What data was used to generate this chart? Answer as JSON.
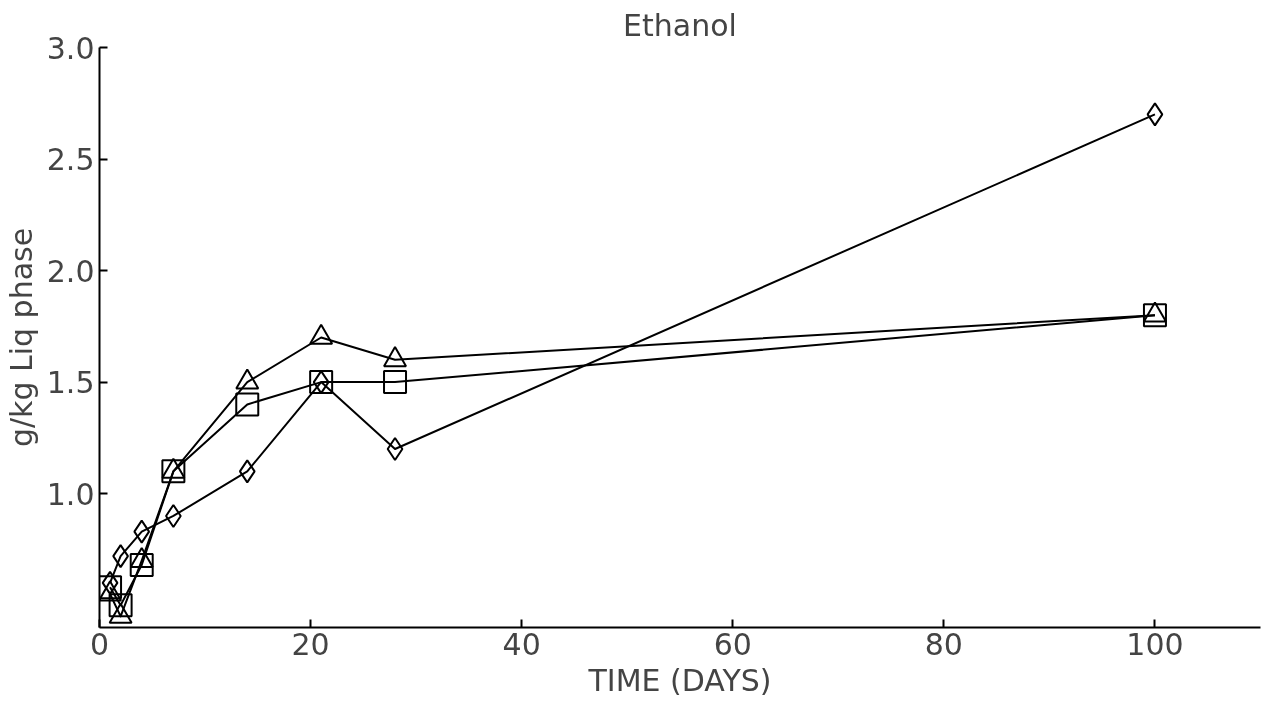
{
  "chart_data": {
    "type": "line",
    "title": "Ethanol",
    "xlabel": "TIME (DAYS)",
    "ylabel": "g/kg Liq phase",
    "x": [
      1,
      2,
      4,
      7,
      14,
      21,
      28,
      100
    ],
    "series": [
      {
        "color": "#000000",
        "marker": "diamond",
        "values": [
          0.6,
          0.72,
          0.83,
          0.9,
          1.1,
          1.5,
          1.2,
          2.7
        ]
      },
      {
        "color": "#000000",
        "marker": "square",
        "values": [
          0.58,
          0.5,
          0.68,
          1.1,
          1.4,
          1.5,
          1.5,
          1.8
        ]
      },
      {
        "color": "#000000",
        "marker": "triangle",
        "values": [
          0.55,
          0.45,
          0.7,
          1.1,
          1.5,
          1.7,
          1.6,
          1.8
        ]
      }
    ],
    "xlim": [
      0,
      110
    ],
    "ylim": [
      0.4,
      3.0
    ],
    "xticks": [
      0,
      20,
      40,
      60,
      80,
      100
    ],
    "yticks": [
      {
        "value": 1,
        "label": "1.0"
      },
      1.5,
      {
        "value": 2,
        "label": "2.0"
      },
      2.5,
      {
        "value": 3,
        "label": "3.0"
      }
    ],
    "grid": false,
    "line_style": "solid"
  }
}
